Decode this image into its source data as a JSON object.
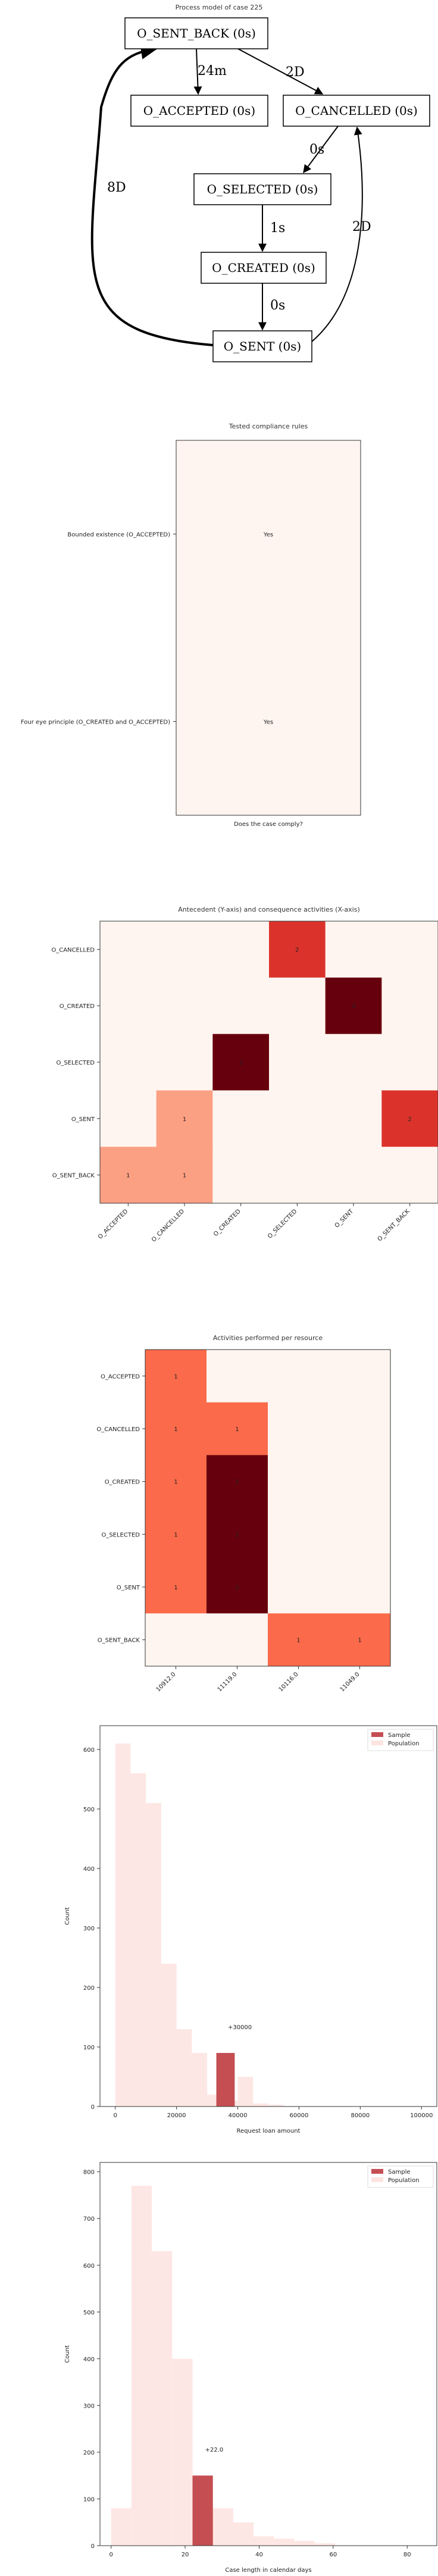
{
  "process_model": {
    "title": "Process model of case 225",
    "nodes": [
      {
        "id": "sent_back",
        "label": "O_SENT_BACK (0s)"
      },
      {
        "id": "accepted",
        "label": "O_ACCEPTED (0s)"
      },
      {
        "id": "cancelled",
        "label": "O_CANCELLED (0s)"
      },
      {
        "id": "selected",
        "label": "O_SELECTED (0s)"
      },
      {
        "id": "created",
        "label": "O_CREATED (0s)"
      },
      {
        "id": "sent",
        "label": "O_SENT (0s)"
      }
    ],
    "edges": [
      {
        "from": "sent_back",
        "to": "accepted",
        "label": "24m"
      },
      {
        "from": "sent_back",
        "to": "cancelled",
        "label": "2D"
      },
      {
        "from": "cancelled",
        "to": "selected",
        "label": "0s"
      },
      {
        "from": "selected",
        "to": "created",
        "label": "1s"
      },
      {
        "from": "created",
        "to": "sent",
        "label": "0s"
      },
      {
        "from": "sent",
        "to": "sent_back",
        "label": "8D"
      },
      {
        "from": "sent",
        "to": "cancelled",
        "label": "2D"
      }
    ]
  },
  "chart_data": [
    {
      "type": "heatmap",
      "title": "Tested compliance rules",
      "xlabel": "Does the case comply?",
      "rows": [
        "Bounded existence (O_ACCEPTED)",
        "Four eye principle (O_CREATED and O_ACCEPTED)"
      ],
      "cells": [
        "Yes",
        "Yes"
      ],
      "color": "#fff5f0"
    },
    {
      "type": "heatmap",
      "title": "Antecedent (Y-axis) and consequence activities (X-axis)",
      "x_categories": [
        "O_ACCEPTED",
        "O_CANCELLED",
        "O_CREATED",
        "O_SELECTED",
        "O_SENT",
        "O_SENT_BACK"
      ],
      "y_categories": [
        "O_CANCELLED",
        "O_CREATED",
        "O_SELECTED",
        "O_SENT",
        "O_SENT_BACK"
      ],
      "values": [
        [
          0,
          0,
          0,
          2,
          0,
          0
        ],
        [
          0,
          0,
          0,
          0,
          3,
          0
        ],
        [
          0,
          0,
          3,
          0,
          0,
          0
        ],
        [
          0,
          1,
          0,
          0,
          0,
          2
        ],
        [
          1,
          1,
          0,
          0,
          0,
          0
        ]
      ],
      "colorscale": "Reds"
    },
    {
      "type": "heatmap",
      "title": "Activities performed per resource",
      "x_categories": [
        "10912.0",
        "11119.0",
        "10116.0",
        "11049.0"
      ],
      "y_categories": [
        "O_ACCEPTED",
        "O_CANCELLED",
        "O_CREATED",
        "O_SELECTED",
        "O_SENT",
        "O_SENT_BACK"
      ],
      "values": [
        [
          1,
          0,
          0,
          0
        ],
        [
          1,
          1,
          0,
          0
        ],
        [
          1,
          2,
          0,
          0
        ],
        [
          1,
          2,
          0,
          0
        ],
        [
          1,
          2,
          0,
          0
        ],
        [
          0,
          0,
          1,
          1
        ]
      ],
      "colorscale": "Reds"
    },
    {
      "type": "bar",
      "xlabel": "Request loan amount",
      "ylabel": "Count",
      "xlim": [
        -5000,
        105000
      ],
      "ylim": [
        0,
        640
      ],
      "xticks": [
        0,
        20000,
        40000,
        60000,
        80000,
        100000
      ],
      "yticks": [
        0,
        100,
        200,
        300,
        400,
        500,
        600
      ],
      "legend": {
        "position": "top-right",
        "entries": [
          "Sample",
          "Population"
        ]
      },
      "population": {
        "name": "Population",
        "bin_edges": [
          0,
          5000,
          10000,
          15000,
          20000,
          25000,
          30000,
          35000,
          40000,
          45000,
          50000,
          55000
        ],
        "counts": [
          610,
          560,
          510,
          240,
          130,
          90,
          20,
          10,
          50,
          5,
          3
        ]
      },
      "sample": {
        "name": "Sample",
        "x_start": 33000,
        "x_end": 39000,
        "count": 90,
        "annotation": "+30000"
      },
      "colors": {
        "sample": "#c44e52",
        "population": "#fde4e1"
      }
    },
    {
      "type": "bar",
      "xlabel": "Case length in calendar days",
      "ylabel": "Count",
      "xlim": [
        -3,
        88
      ],
      "ylim": [
        0,
        820
      ],
      "xticks": [
        0,
        20,
        40,
        60,
        80
      ],
      "yticks": [
        0,
        100,
        200,
        300,
        400,
        500,
        600,
        700,
        800
      ],
      "legend": {
        "position": "top-right",
        "entries": [
          "Sample",
          "Population"
        ]
      },
      "population": {
        "name": "Population",
        "bin_edges": [
          0,
          5.5,
          11,
          16.5,
          22,
          27.5,
          33,
          38.5,
          44,
          49.5,
          55,
          60.5
        ],
        "counts": [
          80,
          770,
          630,
          400,
          130,
          80,
          50,
          20,
          15,
          10,
          5
        ]
      },
      "sample": {
        "name": "Sample",
        "x_start": 22,
        "x_end": 27.5,
        "count": 150,
        "annotation": "+22.0"
      },
      "colors": {
        "sample": "#c44e52",
        "population": "#fde4e1"
      }
    }
  ]
}
